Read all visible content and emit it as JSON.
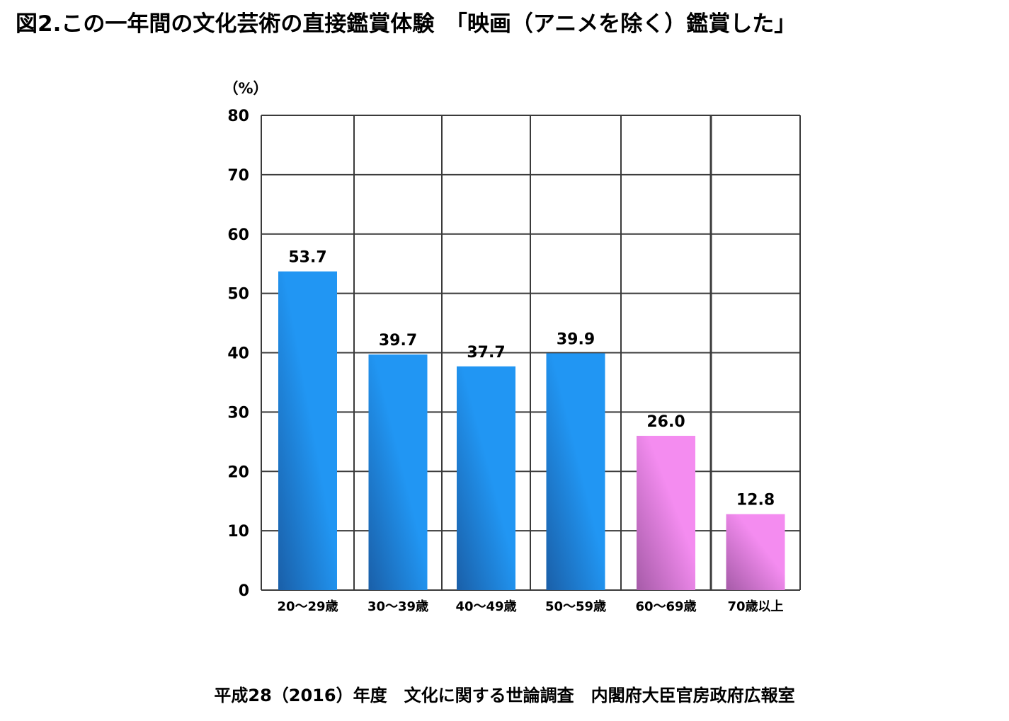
{
  "title": "図2.この一年間の文化芸術の直接鑑賞体験　「映画（アニメを除く）鑑賞した」",
  "source": "平成28（2016）年度　文化に関する世論調査　内閣府大臣官房政府広報室",
  "chart_data": {
    "type": "bar",
    "ylabel": "（%）",
    "ylim": [
      0,
      80
    ],
    "yticks": [
      0,
      10,
      20,
      30,
      40,
      50,
      60,
      70,
      80
    ],
    "grid": true,
    "categories": [
      "20～29歳",
      "30～39歳",
      "40～49歳",
      "50～59歳",
      "60～69歳",
      "70歳以上"
    ],
    "values": [
      53.7,
      39.7,
      37.7,
      39.9,
      26.0,
      12.8
    ],
    "data_labels": [
      "53.7",
      "39.7",
      "37.7",
      "39.9",
      "26.0",
      "12.8"
    ],
    "bar_groups": [
      "blue",
      "blue",
      "blue",
      "blue",
      "pink",
      "pink"
    ],
    "colors": {
      "blue_light": "#2196F3",
      "blue_dark": "#1A5FA8",
      "pink_light": "#F48CF0",
      "pink_dark": "#A65BA8",
      "grid": "#3a3a3a"
    }
  }
}
